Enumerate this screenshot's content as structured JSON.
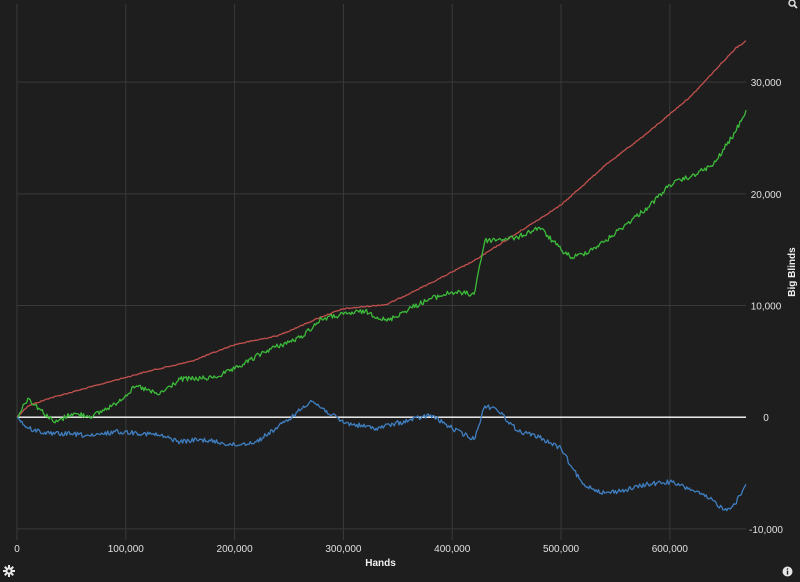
{
  "icons": {
    "settings": "gear-icon",
    "info": "info-icon",
    "zoom": "magnifier-icon"
  },
  "colors": {
    "background": "#1e1e1e",
    "grid": "#3a3a3a",
    "zero_line": "#ffffff",
    "red": "#c0504d",
    "green": "#3dbb3a",
    "blue": "#3f7fc1"
  },
  "chart_data": {
    "type": "line",
    "title": "",
    "xlabel": "Hands",
    "ylabel": "Big Blinds",
    "xlim": [
      0,
      670000
    ],
    "ylim": [
      -11000,
      37000
    ],
    "x_ticks": [
      0,
      100000,
      200000,
      300000,
      400000,
      500000,
      600000
    ],
    "x_tick_labels": [
      "0",
      "100,000",
      "200,000",
      "300,000",
      "400,000",
      "500,000",
      "600,000"
    ],
    "y_ticks": [
      -10000,
      0,
      10000,
      20000,
      30000
    ],
    "y_tick_labels": [
      "-10,000",
      "0",
      "10,000",
      "20,000",
      "30,000"
    ],
    "grid": true,
    "y_axis_position": "right",
    "legend": "none",
    "series": [
      {
        "color": "#c0504d",
        "x": [
          0,
          10000,
          30000,
          60000,
          90000,
          120000,
          160000,
          200000,
          240000,
          280000,
          300000,
          340000,
          380000,
          420000,
          460000,
          500000,
          540000,
          580000,
          620000,
          660000,
          670000
        ],
        "values": [
          0,
          1000,
          1700,
          2500,
          3300,
          4100,
          5000,
          6500,
          7300,
          9000,
          9700,
          10100,
          12000,
          14000,
          16500,
          19000,
          22500,
          25500,
          28800,
          33000,
          33700
        ]
      },
      {
        "color": "#3dbb3a",
        "x": [
          0,
          10000,
          20000,
          35000,
          50000,
          70000,
          90000,
          110000,
          130000,
          150000,
          180000,
          200000,
          230000,
          260000,
          280000,
          300000,
          320000,
          340000,
          360000,
          380000,
          400000,
          420000,
          425000,
          430000,
          460000,
          480000,
          500000,
          510000,
          520000,
          540000,
          560000,
          580000,
          600000,
          620000,
          640000,
          660000,
          670000
        ],
        "values": [
          0,
          1700,
          800,
          -500,
          300,
          100,
          1200,
          2800,
          2000,
          3400,
          3500,
          4300,
          6000,
          7100,
          8800,
          9200,
          9500,
          8600,
          9700,
          10600,
          11200,
          11000,
          13500,
          15800,
          16100,
          17000,
          15000,
          14300,
          14600,
          15700,
          17300,
          18800,
          20800,
          21600,
          22600,
          25500,
          27500
        ]
      },
      {
        "color": "#3f7fc1",
        "x": [
          0,
          10000,
          30000,
          50000,
          70000,
          90000,
          110000,
          130000,
          150000,
          170000,
          200000,
          220000,
          250000,
          270000,
          300000,
          330000,
          360000,
          380000,
          400000,
          420000,
          430000,
          440000,
          460000,
          480000,
          500000,
          510000,
          520000,
          540000,
          560000,
          580000,
          600000,
          620000,
          640000,
          650000,
          660000,
          670000
        ],
        "values": [
          0,
          -1000,
          -1500,
          -1500,
          -1700,
          -1300,
          -1400,
          -1600,
          -2200,
          -2000,
          -2500,
          -2200,
          -200,
          1500,
          -500,
          -1000,
          -300,
          200,
          -1000,
          -2000,
          1000,
          800,
          -1200,
          -1800,
          -2800,
          -4500,
          -6000,
          -6800,
          -6500,
          -6000,
          -5800,
          -6500,
          -7500,
          -8300,
          -7800,
          -6000
        ]
      }
    ]
  }
}
